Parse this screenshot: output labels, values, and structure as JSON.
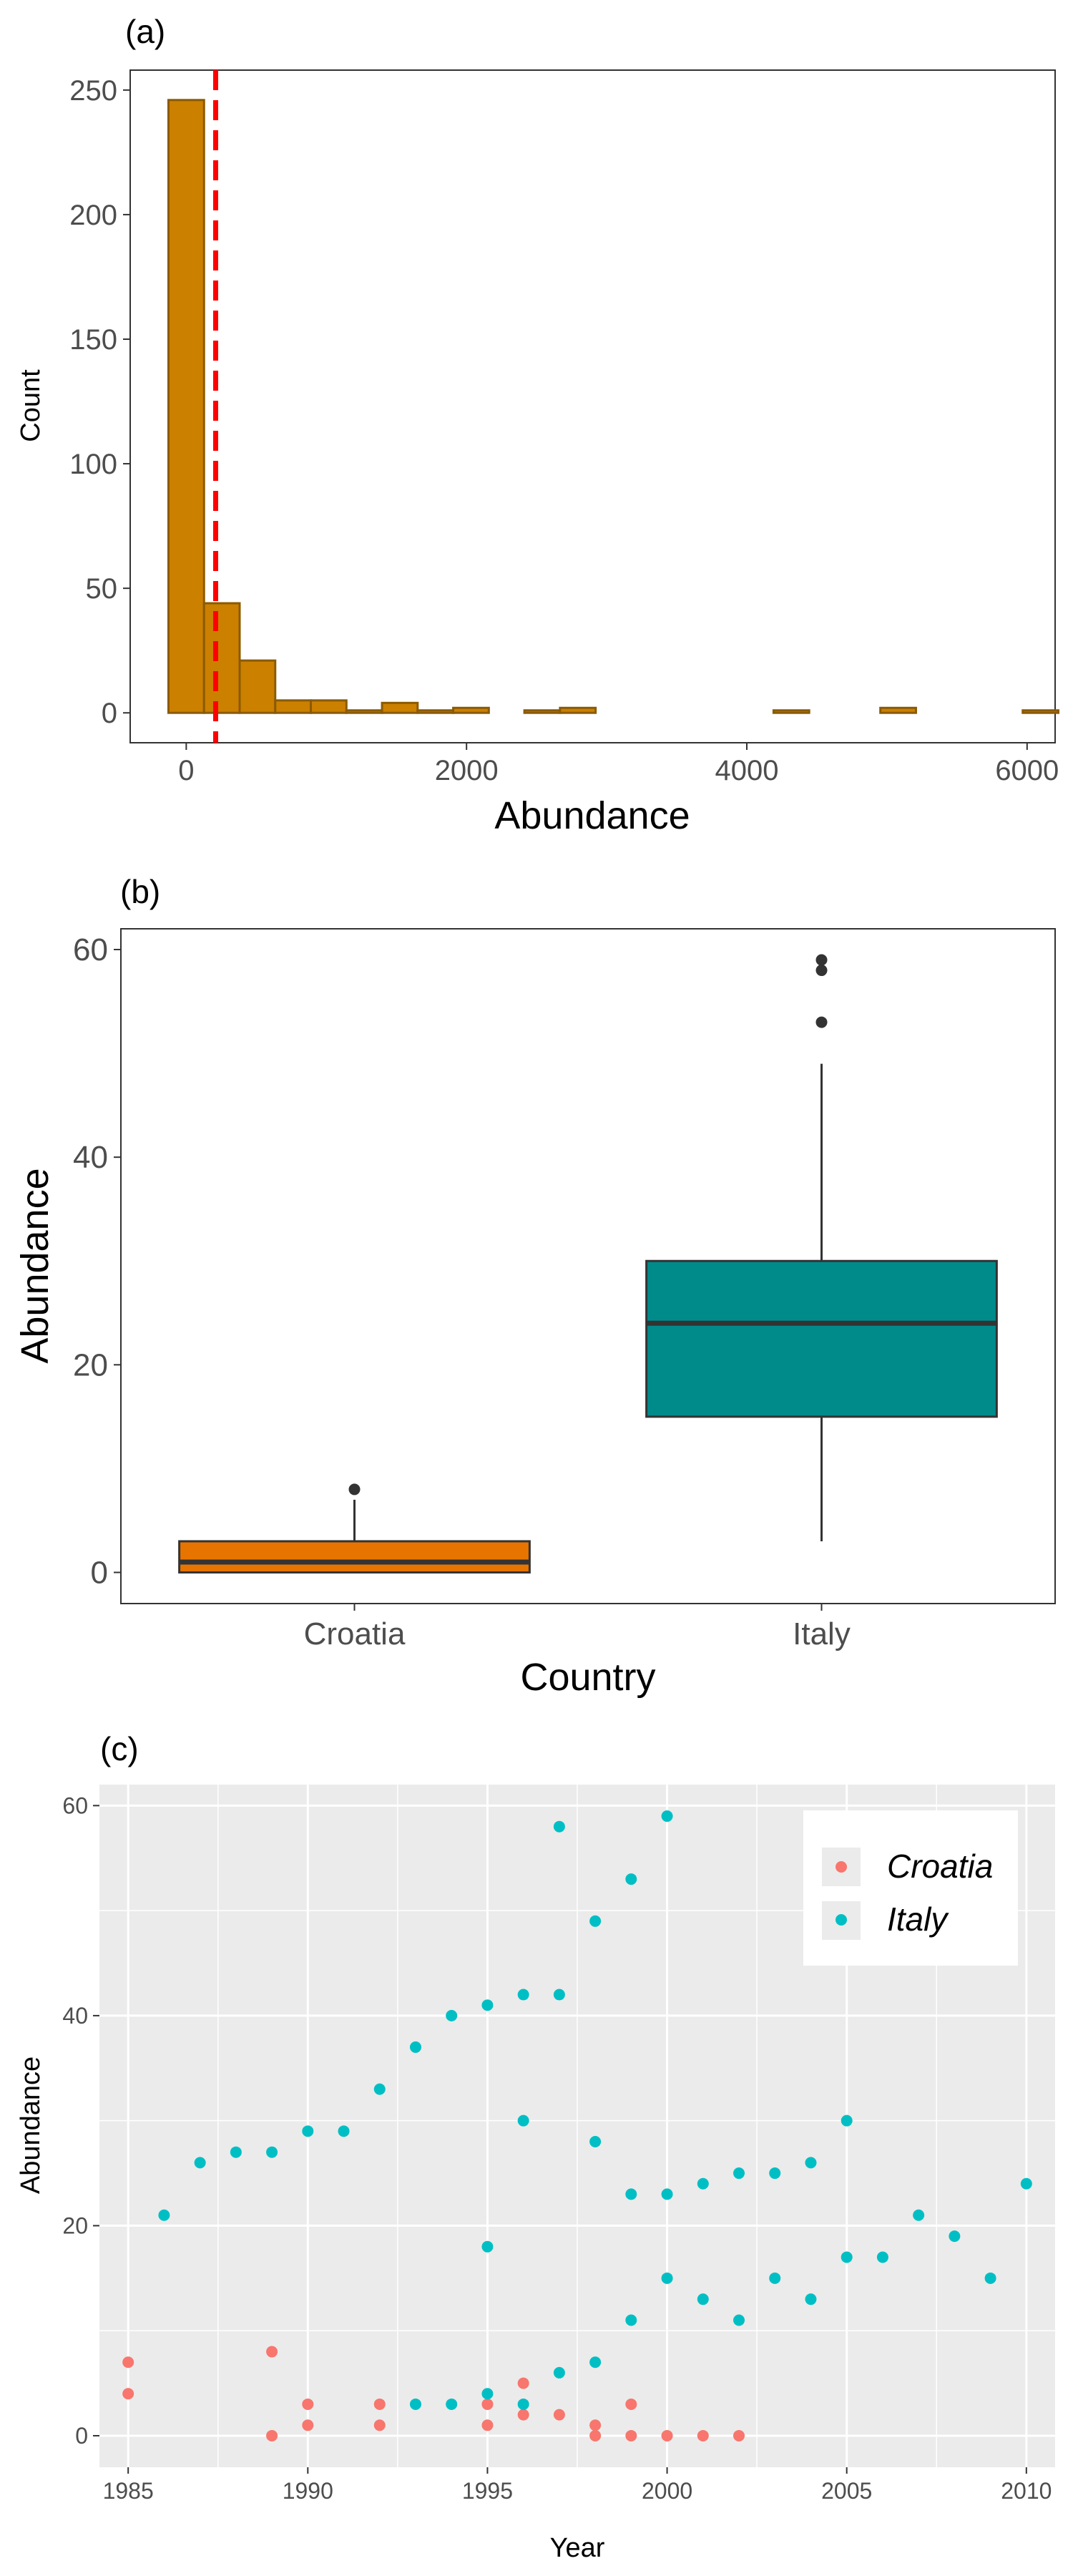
{
  "chart_data": [
    {
      "panel": "(a)",
      "type": "histogram",
      "xlabel": "Abundance",
      "ylabel": "Count",
      "xlim": [
        -400,
        6200
      ],
      "ylim": [
        -12,
        258
      ],
      "x_ticks": [
        0,
        2000,
        4000,
        6000
      ],
      "y_ticks": [
        0,
        50,
        100,
        150,
        200,
        250
      ],
      "bins": [
        {
          "x0": -127,
          "x1": 127,
          "count": 246
        },
        {
          "x0": 127,
          "x1": 381,
          "count": 44
        },
        {
          "x0": 381,
          "x1": 635,
          "count": 21
        },
        {
          "x0": 635,
          "x1": 889,
          "count": 5
        },
        {
          "x0": 889,
          "x1": 1143,
          "count": 5
        },
        {
          "x0": 1143,
          "x1": 1397,
          "count": 1
        },
        {
          "x0": 1397,
          "x1": 1651,
          "count": 4
        },
        {
          "x0": 1651,
          "x1": 1905,
          "count": 1
        },
        {
          "x0": 1905,
          "x1": 2159,
          "count": 2
        },
        {
          "x0": 2159,
          "x1": 2413,
          "count": 0
        },
        {
          "x0": 2413,
          "x1": 2667,
          "count": 1
        },
        {
          "x0": 2667,
          "x1": 2921,
          "count": 2
        },
        {
          "x0": 2921,
          "x1": 3175,
          "count": 0
        },
        {
          "x0": 3175,
          "x1": 3429,
          "count": 0
        },
        {
          "x0": 3429,
          "x1": 3683,
          "count": 0
        },
        {
          "x0": 3683,
          "x1": 3937,
          "count": 0
        },
        {
          "x0": 3937,
          "x1": 4191,
          "count": 0
        },
        {
          "x0": 4191,
          "x1": 4445,
          "count": 1
        },
        {
          "x0": 4445,
          "x1": 4699,
          "count": 0
        },
        {
          "x0": 4699,
          "x1": 4953,
          "count": 0
        },
        {
          "x0": 4953,
          "x1": 5207,
          "count": 2
        },
        {
          "x0": 5207,
          "x1": 5461,
          "count": 0
        },
        {
          "x0": 5461,
          "x1": 5715,
          "count": 0
        },
        {
          "x0": 5715,
          "x1": 5969,
          "count": 0
        },
        {
          "x0": 5969,
          "x1": 6223,
          "count": 1
        }
      ],
      "vline": 210,
      "bar_fill": "#cc8000",
      "bar_stroke": "#8b5a00",
      "vline_color": "#ff0000"
    },
    {
      "panel": "(b)",
      "type": "boxplot",
      "xlabel": "Country",
      "ylabel": "Abundance",
      "ylim": [
        -3,
        62
      ],
      "y_ticks": [
        0,
        20,
        40,
        60
      ],
      "boxes": [
        {
          "category": "Croatia",
          "min": 0,
          "q1": 0,
          "median": 1,
          "q3": 3,
          "max": 7,
          "outliers": [
            8
          ],
          "fill": "#e87400"
        },
        {
          "category": "Italy",
          "min": 3,
          "q1": 15,
          "median": 24,
          "q3": 30,
          "max": 49,
          "outliers": [
            53,
            58,
            59
          ],
          "fill": "#008b8b"
        }
      ]
    },
    {
      "panel": "(c)",
      "type": "scatter",
      "xlabel": "Year",
      "ylabel": "Abundance",
      "xlim": [
        1984.2,
        2010.8
      ],
      "ylim": [
        -3,
        62
      ],
      "x_ticks": [
        1985,
        1990,
        1995,
        2000,
        2005,
        2010
      ],
      "y_ticks": [
        0,
        20,
        40,
        60
      ],
      "legend_position": "top-right",
      "series": [
        {
          "name": "Croatia",
          "color": "#f8766d",
          "points": [
            [
              1985,
              7
            ],
            [
              1985,
              4
            ],
            [
              1989,
              8
            ],
            [
              1989,
              0
            ],
            [
              1990,
              3
            ],
            [
              1990,
              1
            ],
            [
              1992,
              3
            ],
            [
              1992,
              1
            ],
            [
              1995,
              3
            ],
            [
              1995,
              1
            ],
            [
              1996,
              5
            ],
            [
              1996,
              2
            ],
            [
              1997,
              2
            ],
            [
              1998,
              1
            ],
            [
              1998,
              0
            ],
            [
              1999,
              3
            ],
            [
              1999,
              0
            ],
            [
              2000,
              0
            ],
            [
              2001,
              0
            ],
            [
              2002,
              0
            ]
          ]
        },
        {
          "name": "Italy",
          "color": "#00bfc4",
          "points": [
            [
              1986,
              21
            ],
            [
              1987,
              26
            ],
            [
              1988,
              27
            ],
            [
              1989,
              27
            ],
            [
              1990,
              29
            ],
            [
              1991,
              29
            ],
            [
              1992,
              33
            ],
            [
              1993,
              37
            ],
            [
              1993,
              3
            ],
            [
              1994,
              40
            ],
            [
              1994,
              3
            ],
            [
              1995,
              41
            ],
            [
              1995,
              18
            ],
            [
              1995,
              4
            ],
            [
              1996,
              42
            ],
            [
              1996,
              30
            ],
            [
              1996,
              3
            ],
            [
              1997,
              58
            ],
            [
              1997,
              42
            ],
            [
              1997,
              6
            ],
            [
              1998,
              49
            ],
            [
              1998,
              28
            ],
            [
              1998,
              7
            ],
            [
              1999,
              53
            ],
            [
              1999,
              23
            ],
            [
              1999,
              11
            ],
            [
              2000,
              59
            ],
            [
              2000,
              23
            ],
            [
              2000,
              15
            ],
            [
              2001,
              24
            ],
            [
              2001,
              13
            ],
            [
              2002,
              25
            ],
            [
              2002,
              11
            ],
            [
              2003,
              25
            ],
            [
              2003,
              15
            ],
            [
              2004,
              26
            ],
            [
              2004,
              13
            ],
            [
              2005,
              30
            ],
            [
              2005,
              17
            ],
            [
              2006,
              17
            ],
            [
              2007,
              21
            ],
            [
              2008,
              19
            ],
            [
              2009,
              15
            ],
            [
              2010,
              24
            ]
          ]
        }
      ]
    }
  ]
}
